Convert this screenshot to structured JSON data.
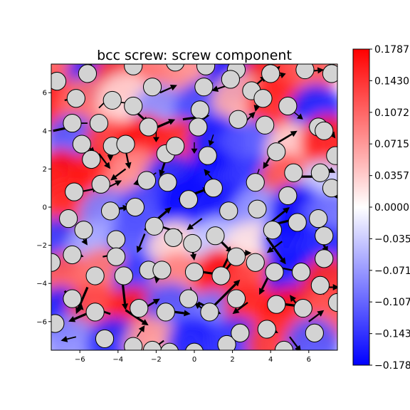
{
  "chart_data": {
    "type": "heatmap",
    "title": "bcc screw: screw component",
    "xlabel": "",
    "ylabel": "",
    "xlim": [
      -7.5,
      7.5
    ],
    "ylim": [
      -7.5,
      7.5
    ],
    "xticks": [
      -6,
      -4,
      -2,
      0,
      2,
      4,
      6
    ],
    "xtick_labels": [
      "−6",
      "−4",
      "−2",
      "0",
      "2",
      "4",
      "6"
    ],
    "yticks": [
      -6,
      -4,
      -2,
      0,
      2,
      4,
      6
    ],
    "ytick_labels": [
      "−6",
      "−4",
      "−2",
      "0",
      "2",
      "4",
      "6"
    ],
    "colormap": [
      "#0000ff",
      "#ffffff",
      "#ff0000"
    ],
    "colorbar": {
      "vmin": -0.1787,
      "vmax": 0.1787,
      "ticks": [
        0.1787,
        0.143,
        0.1072,
        0.0715,
        0.0357,
        0.0,
        -0.0357,
        -0.0715,
        -0.1072,
        -0.143,
        -0.1787
      ],
      "tick_labels": [
        "0.1787",
        "0.1430",
        "0.1072",
        "0.0715",
        "0.0357",
        "0.0000",
        "−0.0357",
        "−0.0715",
        "−0.1072",
        "−0.1430",
        "−0.1787"
      ]
    },
    "grid": false,
    "field_cells": [
      {
        "x": -6.8,
        "y": 6.8,
        "v": 0.12
      },
      {
        "x": -5.2,
        "y": 7.0,
        "v": -0.15
      },
      {
        "x": -3.8,
        "y": 7.0,
        "v": 0.14
      },
      {
        "x": -2.0,
        "y": 6.6,
        "v": 0.1
      },
      {
        "x": 0.0,
        "y": 7.0,
        "v": 0.08
      },
      {
        "x": 2.0,
        "y": 7.0,
        "v": -0.17
      },
      {
        "x": 4.0,
        "y": 7.0,
        "v": 0.16
      },
      {
        "x": 6.0,
        "y": 7.0,
        "v": 0.12
      },
      {
        "x": -7.2,
        "y": 5.2,
        "v": 0.16
      },
      {
        "x": -5.6,
        "y": 5.4,
        "v": 0.1
      },
      {
        "x": -3.6,
        "y": 5.6,
        "v": 0.03
      },
      {
        "x": -1.8,
        "y": 5.0,
        "v": -0.08
      },
      {
        "x": 0.4,
        "y": 5.2,
        "v": -0.13
      },
      {
        "x": 2.4,
        "y": 5.6,
        "v": 0.06
      },
      {
        "x": 4.2,
        "y": 5.4,
        "v": 0.15
      },
      {
        "x": 6.4,
        "y": 5.0,
        "v": -0.16
      },
      {
        "x": -6.4,
        "y": 3.4,
        "v": -0.12
      },
      {
        "x": -4.4,
        "y": 3.2,
        "v": 0.14
      },
      {
        "x": -2.6,
        "y": 3.4,
        "v": 0.17
      },
      {
        "x": -0.8,
        "y": 3.2,
        "v": 0.15
      },
      {
        "x": 1.2,
        "y": 3.4,
        "v": -0.16
      },
      {
        "x": 3.0,
        "y": 3.2,
        "v": -0.12
      },
      {
        "x": 5.2,
        "y": 3.0,
        "v": 0.04
      },
      {
        "x": 7.0,
        "y": 3.4,
        "v": 0.16
      },
      {
        "x": -7.0,
        "y": 1.6,
        "v": 0.17
      },
      {
        "x": -5.2,
        "y": 1.4,
        "v": 0.16
      },
      {
        "x": -3.2,
        "y": 1.6,
        "v": 0.08
      },
      {
        "x": -1.2,
        "y": 1.4,
        "v": -0.15
      },
      {
        "x": 1.0,
        "y": 1.6,
        "v": -0.17
      },
      {
        "x": 2.8,
        "y": 1.2,
        "v": -0.14
      },
      {
        "x": 4.8,
        "y": 1.4,
        "v": 0.12
      },
      {
        "x": 6.8,
        "y": 1.0,
        "v": -0.04
      },
      {
        "x": -6.6,
        "y": -0.2,
        "v": 0.15
      },
      {
        "x": -4.6,
        "y": -0.4,
        "v": -0.09
      },
      {
        "x": -2.6,
        "y": -0.2,
        "v": -0.13
      },
      {
        "x": -0.4,
        "y": 0.2,
        "v": -0.17
      },
      {
        "x": 1.6,
        "y": -0.2,
        "v": -0.16
      },
      {
        "x": 3.4,
        "y": -0.4,
        "v": -0.07
      },
      {
        "x": 5.4,
        "y": -0.2,
        "v": -0.17
      },
      {
        "x": 7.2,
        "y": -0.6,
        "v": -0.1
      },
      {
        "x": -7.2,
        "y": -2.0,
        "v": -0.14
      },
      {
        "x": -5.2,
        "y": -2.2,
        "v": -0.06
      },
      {
        "x": -3.0,
        "y": -1.8,
        "v": -0.12
      },
      {
        "x": -1.0,
        "y": -2.2,
        "v": 0.03
      },
      {
        "x": 1.2,
        "y": -2.0,
        "v": -0.04
      },
      {
        "x": 3.0,
        "y": -2.2,
        "v": 0.02
      },
      {
        "x": 5.0,
        "y": -1.8,
        "v": -0.17
      },
      {
        "x": 6.8,
        "y": -2.4,
        "v": -0.15
      },
      {
        "x": -6.8,
        "y": -3.8,
        "v": 0.12
      },
      {
        "x": -4.8,
        "y": -3.6,
        "v": 0.1
      },
      {
        "x": -2.8,
        "y": -4.0,
        "v": -0.14
      },
      {
        "x": -0.8,
        "y": -3.8,
        "v": 0.09
      },
      {
        "x": 1.4,
        "y": -3.6,
        "v": 0.17
      },
      {
        "x": 3.2,
        "y": -4.0,
        "v": 0.13
      },
      {
        "x": 5.2,
        "y": -3.6,
        "v": -0.16
      },
      {
        "x": 7.0,
        "y": -4.0,
        "v": 0.15
      },
      {
        "x": -7.0,
        "y": -5.6,
        "v": -0.16
      },
      {
        "x": -5.2,
        "y": -5.4,
        "v": 0.13
      },
      {
        "x": -3.2,
        "y": -5.6,
        "v": 0.16
      },
      {
        "x": -1.2,
        "y": -5.4,
        "v": -0.12
      },
      {
        "x": 1.0,
        "y": -5.8,
        "v": -0.1
      },
      {
        "x": 3.0,
        "y": -5.4,
        "v": 0.15
      },
      {
        "x": 5.0,
        "y": -5.6,
        "v": 0.17
      },
      {
        "x": 6.8,
        "y": -5.8,
        "v": 0.12
      },
      {
        "x": -6.4,
        "y": -7.2,
        "v": -0.08
      },
      {
        "x": -4.2,
        "y": -7.2,
        "v": -0.15
      },
      {
        "x": -2.2,
        "y": -7.2,
        "v": 0.07
      },
      {
        "x": 0.0,
        "y": -7.2,
        "v": -0.16
      },
      {
        "x": 2.2,
        "y": -7.2,
        "v": -0.14
      },
      {
        "x": 4.2,
        "y": -7.2,
        "v": 0.14
      },
      {
        "x": 6.2,
        "y": -7.2,
        "v": -0.12
      }
    ],
    "atoms": [
      [
        -7.2,
        6.6
      ],
      [
        -5.6,
        7.0
      ],
      [
        -3.2,
        7.4
      ],
      [
        -1.0,
        7.6
      ],
      [
        0.6,
        7.4
      ],
      [
        2.2,
        7.2
      ],
      [
        4.0,
        7.0
      ],
      [
        5.8,
        7.2
      ],
      [
        7.2,
        7.0
      ],
      [
        -6.2,
        5.7
      ],
      [
        -4.3,
        5.6
      ],
      [
        -3.2,
        5.3
      ],
      [
        -2.2,
        6.3
      ],
      [
        0.5,
        6.3
      ],
      [
        1.9,
        6.7
      ],
      [
        3.0,
        6.1
      ],
      [
        3.6,
        5.7
      ],
      [
        4.9,
        5.3
      ],
      [
        -6.4,
        4.4
      ],
      [
        -5.0,
        4.4
      ],
      [
        -2.4,
        4.2
      ],
      [
        0.3,
        5.1
      ],
      [
        0.2,
        4.2
      ],
      [
        2.3,
        4.6
      ],
      [
        3.7,
        4.3
      ],
      [
        6.5,
        4.2
      ],
      [
        6.8,
        4.0
      ],
      [
        -5.9,
        3.3
      ],
      [
        -5.4,
        2.5
      ],
      [
        -4.3,
        3.2
      ],
      [
        -3.6,
        3.3
      ],
      [
        -1.5,
        2.8
      ],
      [
        -1.0,
        3.2
      ],
      [
        0.7,
        2.7
      ],
      [
        4.3,
        2.9
      ],
      [
        7.4,
        2.7
      ],
      [
        -6.3,
        0.8
      ],
      [
        -4.9,
        1.2
      ],
      [
        -2.5,
        1.4
      ],
      [
        -1.4,
        1.3
      ],
      [
        1.0,
        1.0
      ],
      [
        3.2,
        1.3
      ],
      [
        5.2,
        1.8
      ],
      [
        6.6,
        1.8
      ],
      [
        7.2,
        1.0
      ],
      [
        -6.6,
        -0.6
      ],
      [
        -4.4,
        -0.2
      ],
      [
        -3.1,
        0.0
      ],
      [
        -0.3,
        0.4
      ],
      [
        1.8,
        -0.2
      ],
      [
        3.3,
        -0.1
      ],
      [
        4.9,
        0.6
      ],
      [
        6.5,
        -0.6
      ],
      [
        -5.8,
        -1.2
      ],
      [
        -4.1,
        -1.7
      ],
      [
        -2.1,
        -1.0
      ],
      [
        -1.1,
        -1.6
      ],
      [
        -0.1,
        -1.9
      ],
      [
        1.1,
        -1.5
      ],
      [
        2.2,
        -2.6
      ],
      [
        4.1,
        -1.2
      ],
      [
        5.4,
        -0.8
      ],
      [
        6.8,
        -1.5
      ],
      [
        -6.4,
        -2.5
      ],
      [
        -4.1,
        -2.6
      ],
      [
        -5.2,
        -3.6
      ],
      [
        -3.7,
        -3.6
      ],
      [
        -2.4,
        -3.3
      ],
      [
        -1.7,
        -3.3
      ],
      [
        0.0,
        -3.4
      ],
      [
        1.4,
        -3.6
      ],
      [
        3.2,
        -2.9
      ],
      [
        4.2,
        -3.4
      ],
      [
        5.6,
        -3.4
      ],
      [
        6.8,
        -2.7
      ],
      [
        -7.5,
        -2.9
      ],
      [
        -6.4,
        -4.8
      ],
      [
        -5.2,
        -5.5
      ],
      [
        -2.9,
        -5.3
      ],
      [
        -1.5,
        -5.5
      ],
      [
        -0.3,
        -4.8
      ],
      [
        0.8,
        -5.5
      ],
      [
        2.2,
        -4.8
      ],
      [
        4.3,
        -5.1
      ],
      [
        5.7,
        -5.3
      ],
      [
        6.6,
        -4.1
      ],
      [
        7.5,
        -5.0
      ],
      [
        -7.3,
        -6.1
      ],
      [
        -4.7,
        -6.9
      ],
      [
        -3.2,
        -7.3
      ],
      [
        -2.2,
        -7.5
      ],
      [
        -1.3,
        -7.6
      ],
      [
        0.0,
        -7.6
      ],
      [
        1.7,
        -7.2
      ],
      [
        2.4,
        -6.6
      ],
      [
        3.8,
        -6.4
      ],
      [
        4.7,
        -7.5
      ],
      [
        6.3,
        -6.6
      ]
    ],
    "arrows": [
      [
        -7.0,
        6.8,
        -0.6,
        -0.6
      ],
      [
        -5.8,
        7.6,
        0.5,
        -0.3
      ],
      [
        -3.4,
        7.0,
        0.4,
        0.2
      ],
      [
        -1.8,
        6.0,
        0.9,
        0.4
      ],
      [
        0.2,
        6.4,
        0.8,
        0.1
      ],
      [
        1.8,
        6.4,
        -0.9,
        -0.3
      ],
      [
        3.0,
        6.2,
        0.8,
        0.7
      ],
      [
        4.2,
        6.8,
        0.6,
        0.2
      ],
      [
        5.8,
        7.1,
        1.0,
        0.1
      ],
      [
        3.8,
        6.7,
        0.7,
        0.7
      ],
      [
        -6.8,
        5.6,
        1.0,
        0.2
      ],
      [
        -5.0,
        5.2,
        0.6,
        0.6
      ],
      [
        -3.9,
        5.5,
        0.8,
        -0.1
      ],
      [
        -3.4,
        5.3,
        1.0,
        -0.9
      ],
      [
        -2.4,
        4.0,
        1.4,
        0.6
      ],
      [
        -0.6,
        4.6,
        1.4,
        0.2
      ],
      [
        1.0,
        3.8,
        -0.2,
        -0.6
      ],
      [
        2.6,
        4.4,
        0.6,
        0.6
      ],
      [
        3.4,
        5.8,
        -0.2,
        -0.8
      ],
      [
        5.2,
        5.0,
        0.5,
        -0.4
      ],
      [
        -7.4,
        4.0,
        1.4,
        0.3
      ],
      [
        -5.6,
        4.4,
        -0.8,
        0.0
      ],
      [
        -4.4,
        3.2,
        0.0,
        -0.8
      ],
      [
        -3.6,
        3.0,
        0.2,
        -1.0
      ],
      [
        -2.0,
        4.0,
        0.0,
        -0.6
      ],
      [
        0.0,
        3.4,
        0.0,
        -0.6
      ],
      [
        4.2,
        3.0,
        -0.6,
        -1.0
      ],
      [
        4.4,
        3.4,
        1.0,
        0.6
      ],
      [
        6.0,
        4.2,
        0.6,
        0.1
      ],
      [
        6.8,
        4.4,
        0.6,
        -0.8
      ],
      [
        -6.0,
        3.6,
        0.8,
        -0.8
      ],
      [
        -5.0,
        2.8,
        0.6,
        -0.8
      ],
      [
        -3.6,
        2.0,
        -0.8,
        -0.6
      ],
      [
        -1.4,
        2.8,
        -0.4,
        -1.2
      ],
      [
        -2.0,
        1.8,
        -0.6,
        -0.4
      ],
      [
        0.6,
        2.2,
        0.3,
        0.6
      ],
      [
        3.4,
        2.0,
        -0.2,
        -0.6
      ],
      [
        5.0,
        1.6,
        1.6,
        0.0
      ],
      [
        6.6,
        2.2,
        0.8,
        -0.4
      ],
      [
        7.0,
        1.2,
        0.6,
        -0.8
      ],
      [
        -6.0,
        0.8,
        1.0,
        0.2
      ],
      [
        -4.6,
        1.0,
        0.8,
        0.4
      ],
      [
        -2.6,
        1.4,
        -0.6,
        -0.2
      ],
      [
        -0.8,
        0.4,
        1.6,
        0.6
      ],
      [
        1.0,
        1.4,
        -0.5,
        0.6
      ],
      [
        -4.8,
        -0.2,
        1.4,
        0.2
      ],
      [
        -3.6,
        0.2,
        0.2,
        -0.4
      ],
      [
        -2.6,
        -1.2,
        1.4,
        1.2
      ],
      [
        0.4,
        -0.6,
        -0.8,
        -0.6
      ],
      [
        4.0,
        -0.8,
        1.0,
        0.8
      ],
      [
        5.4,
        -0.6,
        -1.6,
        -0.4
      ],
      [
        6.4,
        -1.2,
        0.6,
        -1.2
      ],
      [
        -6.0,
        -1.4,
        0.4,
        -0.6
      ],
      [
        -2.6,
        -1.4,
        -0.4,
        -1.0
      ],
      [
        -1.8,
        -1.0,
        1.2,
        -0.4
      ],
      [
        -0.2,
        -1.6,
        0.2,
        -1.2
      ],
      [
        1.0,
        -1.4,
        1.0,
        -1.0
      ],
      [
        2.0,
        -2.4,
        1.0,
        0.0
      ],
      [
        3.8,
        -1.6,
        1.0,
        -1.4
      ],
      [
        4.6,
        -1.8,
        -0.8,
        -0.6
      ],
      [
        -6.4,
        -2.4,
        0.6,
        -0.2
      ],
      [
        -4.8,
        -2.6,
        1.0,
        0.2
      ],
      [
        -2.8,
        -3.4,
        1.2,
        0.2
      ],
      [
        -1.8,
        -3.0,
        -0.2,
        -1.0
      ],
      [
        0.4,
        -3.4,
        1.4,
        -0.2
      ],
      [
        2.2,
        -2.6,
        -0.8,
        -1.0
      ],
      [
        4.0,
        -3.4,
        -0.6,
        -1.2
      ],
      [
        4.6,
        -3.2,
        1.0,
        -0.2
      ],
      [
        6.4,
        -3.8,
        0.4,
        -0.8
      ],
      [
        1.8,
        -2.6,
        -0.6,
        -1.2
      ],
      [
        -6.8,
        -4.4,
        1.0,
        -1.0
      ],
      [
        -5.6,
        -4.2,
        -0.6,
        -1.4
      ],
      [
        -5.2,
        -5.4,
        -1.4,
        -0.6
      ],
      [
        -4.4,
        -5.6,
        -1.2,
        0.4
      ],
      [
        -3.8,
        -3.6,
        0.2,
        -1.8
      ],
      [
        -3.6,
        -5.4,
        1.2,
        -0.8
      ],
      [
        -2.8,
        -5.4,
        1.0,
        0.6
      ],
      [
        -1.8,
        -5.4,
        1.6,
        -0.2
      ],
      [
        -0.2,
        -4.2,
        0.2,
        -0.6
      ],
      [
        0.2,
        -5.0,
        1.2,
        -0.6
      ],
      [
        0.8,
        -5.6,
        -0.8,
        0.6
      ],
      [
        0.8,
        -5.4,
        1.6,
        1.6
      ],
      [
        2.8,
        -5.0,
        -0.8,
        -0.6
      ],
      [
        4.0,
        -5.0,
        1.6,
        -0.2
      ],
      [
        5.6,
        -5.4,
        -0.6,
        0.8
      ],
      [
        6.6,
        -4.2,
        1.0,
        0.0
      ],
      [
        -6.2,
        -6.8,
        -0.8,
        -0.2
      ],
      [
        -3.0,
        -6.8,
        0.4,
        0.6
      ],
      [
        -1.6,
        -7.0,
        -0.8,
        -0.6
      ],
      [
        0.0,
        -7.2,
        0.0,
        -0.6
      ],
      [
        2.0,
        -6.8,
        0.4,
        0.6
      ],
      [
        3.6,
        -6.2,
        0.8,
        -0.4
      ],
      [
        5.0,
        -6.8,
        0.6,
        -0.8
      ],
      [
        6.0,
        -6.0,
        0.8,
        0.6
      ]
    ]
  }
}
